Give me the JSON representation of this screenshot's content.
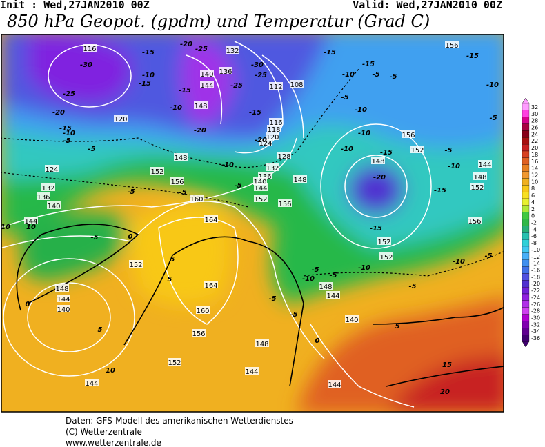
{
  "header": {
    "init": "Init : Wed,27JAN2010 00Z",
    "valid": "Valid: Wed,27JAN2010 00Z",
    "title": "850 hPa Geopot. (gpdm) und Temperatur (Grad C)"
  },
  "colorbar": {
    "labels": [
      32,
      30,
      28,
      26,
      24,
      22,
      20,
      18,
      16,
      14,
      12,
      10,
      8,
      6,
      4,
      2,
      0,
      -2,
      -4,
      -6,
      -8,
      -10,
      -12,
      -14,
      -16,
      -18,
      -20,
      -22,
      -24,
      -26,
      -28,
      -30,
      -32,
      -34,
      -36
    ],
    "colors": [
      "#ff9cff",
      "#ff40e0",
      "#d8008c",
      "#a80040",
      "#880018",
      "#a81010",
      "#c82020",
      "#d84020",
      "#e06020",
      "#e88020",
      "#f09830",
      "#f0b020",
      "#f8c818",
      "#f8e020",
      "#e8f030",
      "#b0e838",
      "#40c840",
      "#30b848",
      "#28b078",
      "#28c0b0",
      "#30d0d8",
      "#40c8f0",
      "#48b0f8",
      "#4090f0",
      "#4070e8",
      "#5050e0",
      "#5030d0",
      "#7020d8",
      "#9020e0",
      "#b030e8",
      "#d040f0",
      "#b000d0",
      "#8000b0",
      "#600090",
      "#400070"
    ]
  },
  "contour_labels": {
    "geopotential": [
      116,
      120,
      124,
      132,
      136,
      140,
      144,
      148,
      144,
      140,
      152,
      160,
      164,
      164,
      160,
      156,
      152,
      148,
      144,
      144,
      144,
      140,
      144,
      148,
      152,
      152,
      148,
      152,
      156,
      156,
      144,
      148,
      152,
      156,
      128,
      132,
      136,
      140,
      144,
      148,
      152,
      156,
      152,
      148,
      156,
      108,
      112,
      116,
      118,
      120,
      124,
      140,
      136,
      144,
      148,
      132
    ],
    "temperature": [
      -30,
      -25,
      -20,
      -15,
      -10,
      -5,
      -5,
      -10,
      -15,
      -15,
      -10,
      -15,
      -20,
      -25,
      -30,
      -25,
      -25,
      -20,
      -15,
      -20,
      -10,
      -5,
      -5,
      -5,
      -5,
      0,
      -15,
      -10,
      -15,
      -5,
      -5,
      -10,
      -10,
      -5,
      -15,
      -20,
      -15,
      -10,
      -10,
      -15,
      -10,
      -5,
      -15,
      -10,
      -5,
      -5,
      -10,
      -5,
      -10,
      -5,
      -5,
      -5,
      -5,
      0,
      0,
      5,
      5,
      5,
      5,
      10,
      10,
      10,
      15,
      20
    ]
  },
  "footer": [
    "Daten: GFS-Modell des amerikanischen Wetterdienstes",
    "(C) Wetterzentrale",
    "www.wetterzentrale.de"
  ]
}
